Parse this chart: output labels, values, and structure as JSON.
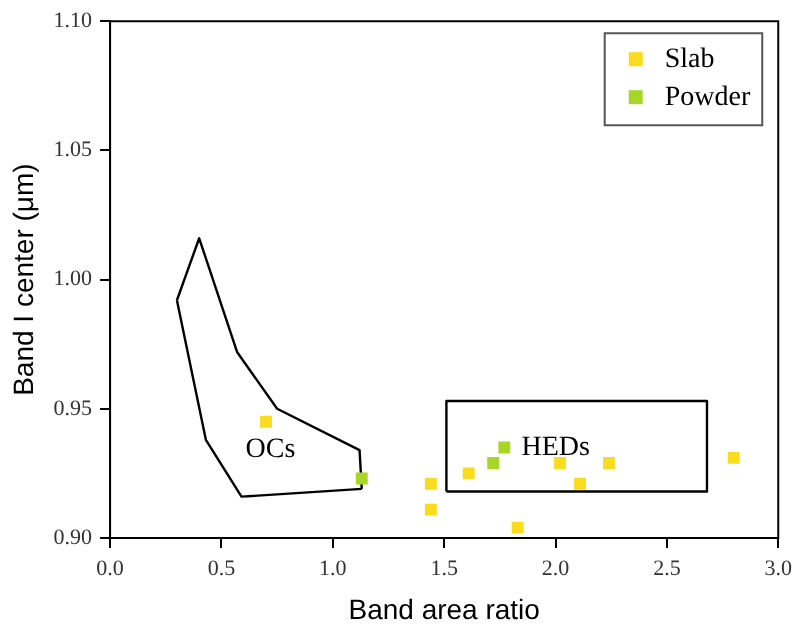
{
  "chart_data": {
    "type": "scatter",
    "xlabel": "Band area ratio",
    "ylabel": "Band I center (μm)",
    "marker": "square",
    "legend": "top right",
    "grid": false,
    "xlim": [
      0,
      3
    ],
    "xticks": [
      {
        "value": 0,
        "label": "0.0"
      },
      {
        "value": 0.5,
        "label": "0.5"
      },
      {
        "value": 1,
        "label": "1.0"
      },
      {
        "value": 1.5,
        "label": "1.5"
      },
      {
        "value": 2,
        "label": "2.0"
      },
      {
        "value": 2.5,
        "label": "2.5"
      },
      {
        "value": 3,
        "label": "3.0"
      }
    ],
    "ylim": [
      0.9,
      1.1
    ],
    "yticks": [
      {
        "value": 0.9,
        "label": "0.90"
      },
      {
        "value": 0.95,
        "label": "0.95"
      },
      {
        "value": 1,
        "label": "1.00"
      },
      {
        "value": 1.05,
        "label": "1.05"
      },
      {
        "value": 1.1,
        "label": "1.10"
      }
    ],
    "series": [
      {
        "name": "Slab",
        "color": "#fadc1e",
        "x": [
          0.7,
          1.44,
          1.44,
          1.61,
          1.83,
          2.02,
          2.11,
          2.24,
          2.8
        ],
        "values": [
          0.945,
          0.921,
          0.911,
          0.925,
          0.904,
          0.929,
          0.921,
          0.929,
          0.931
        ]
      },
      {
        "name": "Powder",
        "color": "#a8d626",
        "x": [
          1.13,
          1.72,
          1.77
        ],
        "values": [
          0.923,
          0.929,
          0.935
        ]
      },
      {
        "type": "line",
        "color": "#000000",
        "marker": "none",
        "x": [
          0.3,
          0.4,
          0.57,
          0.75,
          1.12,
          1.13
        ],
        "values": [
          0.992,
          1.016,
          0.972,
          0.95,
          0.934,
          0.919
        ]
      },
      {
        "type": "line",
        "color": "#000000",
        "marker": "none",
        "x": [
          0.3,
          0.43,
          0.59,
          1.13
        ],
        "values": [
          0.992,
          0.938,
          0.916,
          0.919
        ]
      },
      {
        "type": "line",
        "color": "#000000",
        "marker": "none",
        "x": [
          1.51,
          1.51,
          2.68,
          2.68
        ],
        "values": [
          0.918,
          0.953,
          0.953,
          0.918
        ]
      },
      {
        "type": "line",
        "color": "#000000",
        "marker": "none",
        "x": [
          1.51,
          2.68
        ],
        "values": [
          0.918,
          0.918
        ]
      }
    ],
    "annotations": [
      "OCs",
      "HEDs"
    ]
  }
}
